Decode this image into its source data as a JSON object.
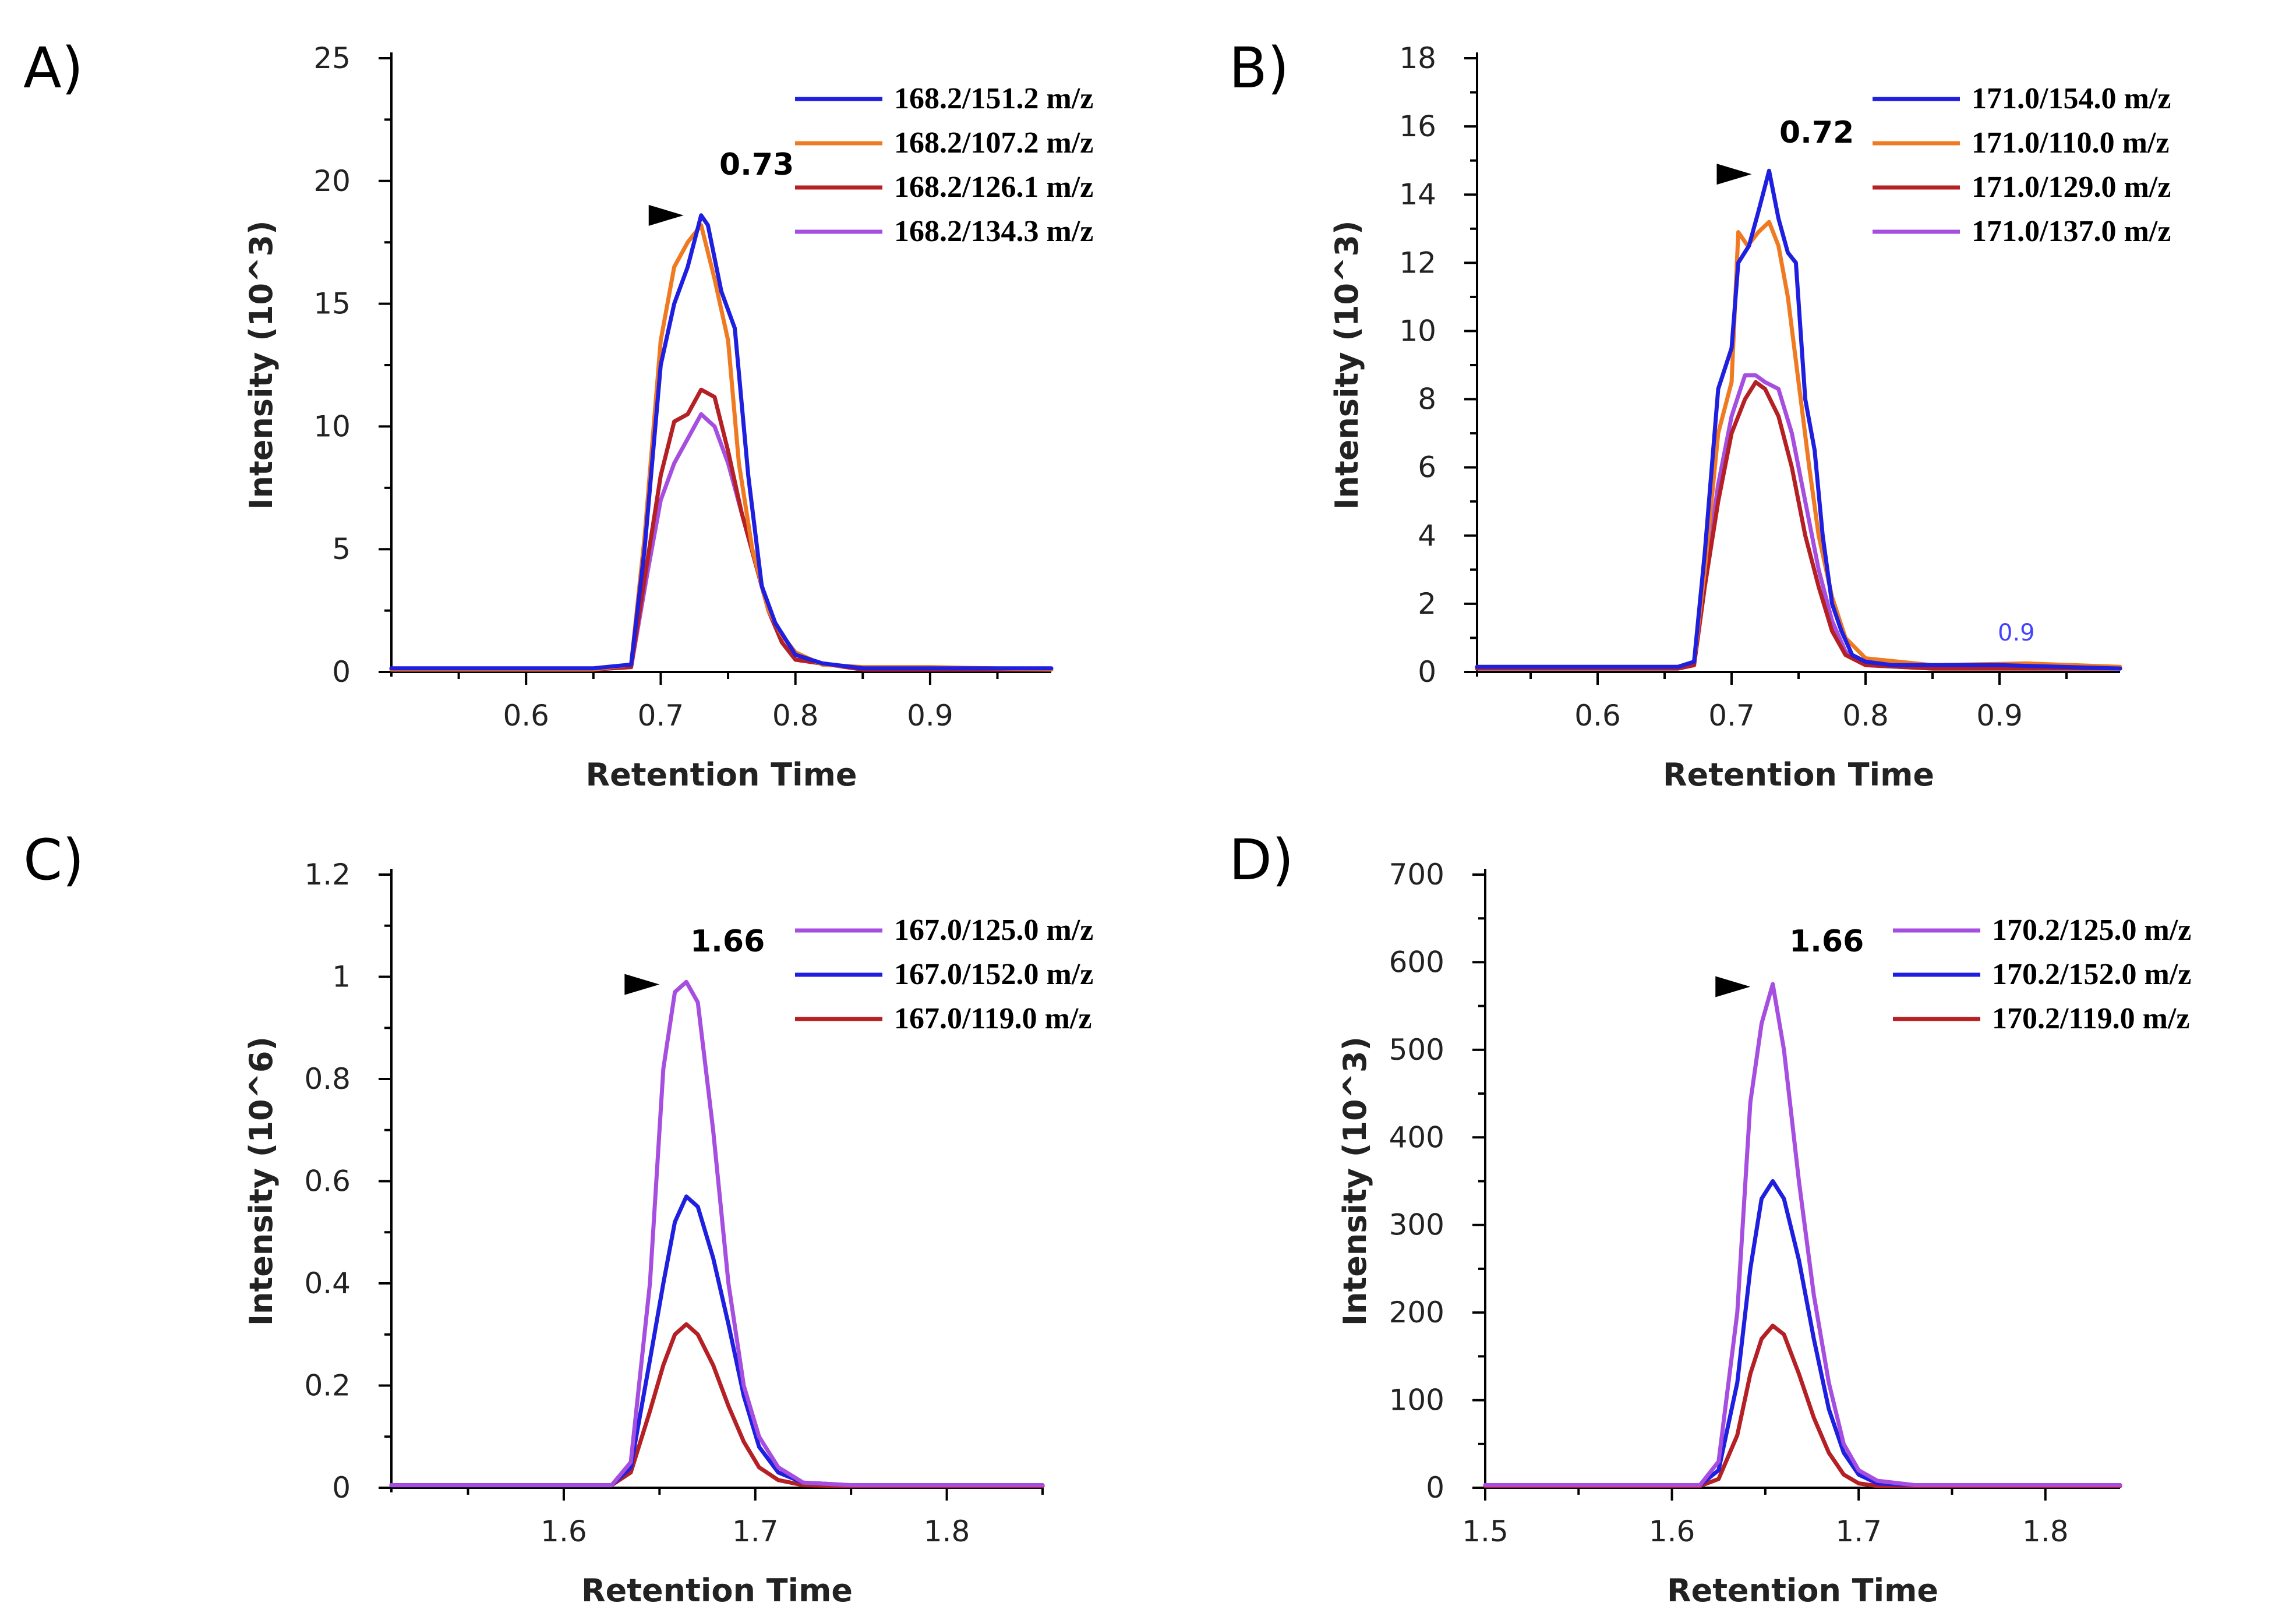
{
  "colors": {
    "blue": "#1f1fe0",
    "orange": "#f07a22",
    "red": "#b52025",
    "purple": "#a64ee0"
  },
  "chart_data": [
    {
      "panel": "A)",
      "type": "line",
      "xlabel": "Retention Time",
      "ylabel": "Intensity (10^3)",
      "xlim": [
        0.5,
        0.99
      ],
      "ylim": [
        0,
        25
      ],
      "xticks": [
        "0.6",
        "0.7",
        "0.8",
        "0.9"
      ],
      "yticks": [
        "0",
        "5",
        "10",
        "15",
        "20",
        "25"
      ],
      "peak_label": "0.73",
      "peak_marker": {
        "x": 0.717,
        "y": 18.6
      },
      "legend": [
        "168.2/151.2 m/z",
        "168.2/107.2 m/z",
        "168.2/126.1 m/z",
        "168.2/134.3 m/z"
      ],
      "series": [
        {
          "name": "168.2/151.2 m/z",
          "color": "blue",
          "x": [
            0.5,
            0.65,
            0.678,
            0.688,
            0.7,
            0.71,
            0.72,
            0.73,
            0.735,
            0.745,
            0.755,
            0.765,
            0.775,
            0.785,
            0.8,
            0.82,
            0.85,
            0.9,
            0.99
          ],
          "y": [
            0.15,
            0.15,
            0.3,
            5.0,
            12.5,
            15.0,
            16.5,
            18.6,
            18.2,
            15.5,
            14.0,
            8.0,
            3.5,
            2.0,
            0.7,
            0.35,
            0.15,
            0.15,
            0.15
          ]
        },
        {
          "name": "168.2/107.2 m/z",
          "color": "orange",
          "x": [
            0.5,
            0.65,
            0.678,
            0.688,
            0.7,
            0.71,
            0.72,
            0.73,
            0.74,
            0.75,
            0.758,
            0.768,
            0.78,
            0.79,
            0.8,
            0.82,
            0.85,
            0.9,
            0.99
          ],
          "y": [
            0.1,
            0.1,
            0.3,
            5.5,
            13.5,
            16.5,
            17.5,
            18.2,
            16.0,
            13.5,
            8.5,
            5.0,
            2.5,
            1.5,
            0.8,
            0.3,
            0.2,
            0.2,
            0.1
          ]
        },
        {
          "name": "168.2/126.1 m/z",
          "color": "red",
          "x": [
            0.5,
            0.65,
            0.678,
            0.69,
            0.7,
            0.71,
            0.72,
            0.73,
            0.74,
            0.75,
            0.76,
            0.77,
            0.78,
            0.79,
            0.8,
            0.85,
            0.99
          ],
          "y": [
            0.1,
            0.1,
            0.2,
            4.5,
            8.0,
            10.2,
            10.5,
            11.5,
            11.2,
            9.0,
            6.5,
            4.5,
            2.5,
            1.2,
            0.5,
            0.1,
            0.1
          ]
        },
        {
          "name": "168.2/134.3 m/z",
          "color": "purple",
          "x": [
            0.5,
            0.65,
            0.678,
            0.69,
            0.7,
            0.71,
            0.72,
            0.73,
            0.74,
            0.75,
            0.76,
            0.77,
            0.78,
            0.79,
            0.8,
            0.85,
            0.99
          ],
          "y": [
            0.1,
            0.1,
            0.2,
            4.0,
            7.0,
            8.5,
            9.5,
            10.5,
            10.0,
            8.5,
            6.5,
            4.5,
            2.5,
            1.2,
            0.5,
            0.1,
            0.1
          ]
        }
      ]
    },
    {
      "panel": "B)",
      "type": "line",
      "xlabel": "Retention Time",
      "ylabel": "Intensity (10^3)",
      "xlim": [
        0.51,
        0.99
      ],
      "ylim": [
        0,
        18
      ],
      "xticks": [
        "0.6",
        "0.7",
        "0.8",
        "0.9"
      ],
      "yticks": [
        "0",
        "2",
        "4",
        "6",
        "8",
        "10",
        "12",
        "14",
        "16",
        "18"
      ],
      "peak_label": "0.72",
      "peak_marker": {
        "x": 0.715,
        "y": 14.6
      },
      "note": "0.9",
      "legend": [
        "171.0/154.0 m/z",
        "171.0/110.0 m/z",
        "171.0/129.0 m/z",
        "171.0/137.0 m/z"
      ],
      "series": [
        {
          "name": "171.0/154.0 m/z",
          "color": "blue",
          "x": [
            0.51,
            0.66,
            0.672,
            0.68,
            0.69,
            0.7,
            0.705,
            0.713,
            0.72,
            0.728,
            0.735,
            0.742,
            0.748,
            0.755,
            0.762,
            0.768,
            0.775,
            0.782,
            0.79,
            0.8,
            0.82,
            0.85,
            0.9,
            0.99
          ],
          "y": [
            0.15,
            0.15,
            0.3,
            3.5,
            8.3,
            9.5,
            12.0,
            12.5,
            13.5,
            14.7,
            13.3,
            12.3,
            12.0,
            8.0,
            6.5,
            4.0,
            2.0,
            1.2,
            0.5,
            0.3,
            0.2,
            0.2,
            0.2,
            0.1
          ]
        },
        {
          "name": "171.0/110.0 m/z",
          "color": "orange",
          "x": [
            0.51,
            0.66,
            0.672,
            0.68,
            0.69,
            0.7,
            0.705,
            0.712,
            0.72,
            0.728,
            0.735,
            0.742,
            0.75,
            0.758,
            0.765,
            0.775,
            0.785,
            0.8,
            0.85,
            0.92,
            0.99
          ],
          "y": [
            0.15,
            0.15,
            0.3,
            3.0,
            7.0,
            8.5,
            12.9,
            12.5,
            12.9,
            13.2,
            12.5,
            11.0,
            8.5,
            6.0,
            4.0,
            2.2,
            1.0,
            0.4,
            0.2,
            0.25,
            0.15
          ]
        },
        {
          "name": "171.0/129.0 m/z",
          "color": "red",
          "x": [
            0.51,
            0.66,
            0.672,
            0.68,
            0.69,
            0.7,
            0.71,
            0.718,
            0.725,
            0.735,
            0.745,
            0.755,
            0.765,
            0.775,
            0.785,
            0.8,
            0.85,
            0.99
          ],
          "y": [
            0.1,
            0.1,
            0.2,
            2.5,
            5.0,
            7.0,
            8.0,
            8.5,
            8.3,
            7.5,
            6.0,
            4.0,
            2.5,
            1.2,
            0.5,
            0.2,
            0.1,
            0.1
          ]
        },
        {
          "name": "171.0/137.0 m/z",
          "color": "purple",
          "x": [
            0.51,
            0.66,
            0.672,
            0.68,
            0.69,
            0.7,
            0.71,
            0.718,
            0.725,
            0.735,
            0.745,
            0.755,
            0.765,
            0.775,
            0.785,
            0.8,
            0.85,
            0.99
          ],
          "y": [
            0.1,
            0.1,
            0.2,
            2.7,
            5.5,
            7.5,
            8.7,
            8.7,
            8.5,
            8.3,
            7.0,
            5.0,
            3.0,
            1.5,
            0.6,
            0.2,
            0.1,
            0.1
          ]
        }
      ]
    },
    {
      "panel": "C)",
      "type": "line",
      "xlabel": "Retention Time",
      "ylabel": "Intensity (10^6)",
      "xlim": [
        1.51,
        1.85
      ],
      "ylim": [
        0,
        1.2
      ],
      "xticks": [
        "1.6",
        "1.7",
        "1.8"
      ],
      "yticks": [
        "0",
        "0.2",
        "0.4",
        "0.6",
        "0.8",
        "1",
        "1.2"
      ],
      "peak_label": "1.66",
      "peak_marker": {
        "x": 1.65,
        "y": 0.985
      },
      "legend": [
        "167.0/125.0 m/z",
        "167.0/152.0 m/z",
        "167.0/119.0 m/z"
      ],
      "series": [
        {
          "name": "167.0/125.0 m/z",
          "color": "purple",
          "x": [
            1.51,
            1.625,
            1.635,
            1.645,
            1.652,
            1.658,
            1.664,
            1.67,
            1.678,
            1.686,
            1.694,
            1.702,
            1.712,
            1.725,
            1.75,
            1.85
          ],
          "y": [
            0.005,
            0.005,
            0.05,
            0.4,
            0.82,
            0.97,
            0.99,
            0.95,
            0.7,
            0.4,
            0.2,
            0.1,
            0.04,
            0.01,
            0.005,
            0.005
          ]
        },
        {
          "name": "167.0/152.0 m/z",
          "color": "blue",
          "x": [
            1.51,
            1.625,
            1.635,
            1.645,
            1.652,
            1.658,
            1.664,
            1.67,
            1.678,
            1.686,
            1.694,
            1.702,
            1.712,
            1.725,
            1.75,
            1.85
          ],
          "y": [
            0.005,
            0.005,
            0.04,
            0.25,
            0.4,
            0.52,
            0.57,
            0.55,
            0.45,
            0.32,
            0.18,
            0.08,
            0.03,
            0.01,
            0.005,
            0.005
          ]
        },
        {
          "name": "167.0/119.0 m/z",
          "color": "red",
          "x": [
            1.51,
            1.625,
            1.635,
            1.645,
            1.652,
            1.658,
            1.664,
            1.67,
            1.678,
            1.686,
            1.694,
            1.702,
            1.712,
            1.725,
            1.75,
            1.85
          ],
          "y": [
            0.005,
            0.005,
            0.03,
            0.15,
            0.24,
            0.3,
            0.32,
            0.3,
            0.24,
            0.16,
            0.09,
            0.04,
            0.015,
            0.005,
            0.003,
            0.003
          ]
        }
      ]
    },
    {
      "panel": "D)",
      "type": "line",
      "xlabel": "Retention Time",
      "ylabel": "Intensity (10^3)",
      "xlim": [
        1.5,
        1.84
      ],
      "ylim": [
        0,
        700
      ],
      "xticks": [
        "1.5",
        "1.6",
        "1.7",
        "1.8"
      ],
      "yticks": [
        "0",
        "100",
        "200",
        "300",
        "400",
        "500",
        "600",
        "700"
      ],
      "peak_label": "1.66",
      "peak_marker": {
        "x": 1.642,
        "y": 572
      },
      "legend": [
        "170.2/125.0 m/z",
        "170.2/152.0 m/z",
        "170.2/119.0 m/z"
      ],
      "series": [
        {
          "name": "170.2/125.0 m/z",
          "color": "purple",
          "x": [
            1.5,
            1.615,
            1.625,
            1.635,
            1.642,
            1.648,
            1.654,
            1.66,
            1.668,
            1.676,
            1.684,
            1.692,
            1.7,
            1.71,
            1.73,
            1.84
          ],
          "y": [
            3,
            3,
            30,
            200,
            440,
            530,
            575,
            500,
            350,
            220,
            120,
            50,
            20,
            8,
            3,
            3
          ]
        },
        {
          "name": "170.2/152.0 m/z",
          "color": "blue",
          "x": [
            1.5,
            1.615,
            1.625,
            1.635,
            1.642,
            1.648,
            1.654,
            1.66,
            1.668,
            1.676,
            1.684,
            1.692,
            1.7,
            1.71,
            1.73,
            1.84
          ],
          "y": [
            3,
            3,
            20,
            120,
            250,
            330,
            350,
            330,
            260,
            170,
            90,
            40,
            15,
            5,
            3,
            3
          ]
        },
        {
          "name": "170.2/119.0 m/z",
          "color": "red",
          "x": [
            1.5,
            1.615,
            1.625,
            1.635,
            1.642,
            1.648,
            1.654,
            1.66,
            1.668,
            1.676,
            1.684,
            1.692,
            1.7,
            1.71,
            1.73,
            1.84
          ],
          "y": [
            2,
            2,
            10,
            60,
            130,
            170,
            185,
            175,
            130,
            80,
            40,
            15,
            5,
            2,
            2,
            2
          ]
        }
      ]
    }
  ]
}
